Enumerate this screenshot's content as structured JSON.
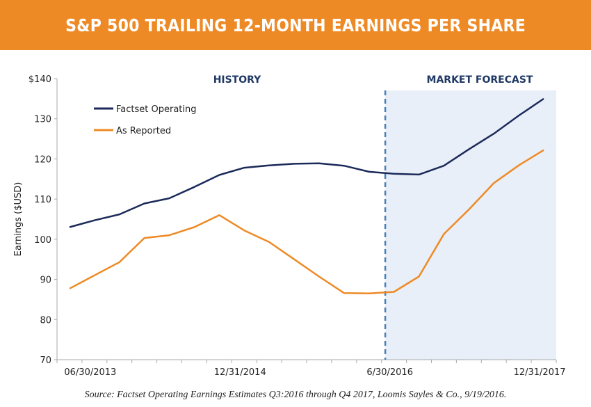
{
  "header": {
    "title": "S&P 500 TRAILING 12-MONTH EARNINGS PER SHARE"
  },
  "colors": {
    "header_bg": "#ee8a25",
    "factset": "#1c2a5a",
    "reported": "#ee8a25",
    "forecast_bg": "#e8eff8",
    "divider": "#4a80b8"
  },
  "chart_data": {
    "type": "line",
    "title": "S&P 500 TRAILING 12-MONTH EARNINGS PER SHARE",
    "ylabel": "Earnings ($USD)",
    "xlabel": "",
    "ylim": [
      70,
      140
    ],
    "yticks": [
      70,
      80,
      90,
      100,
      110,
      120,
      130,
      140
    ],
    "ytick_labels": [
      "70",
      "80",
      "90",
      "100",
      "110",
      "120",
      "130",
      "$140"
    ],
    "x": [
      "3/31/2013",
      "06/30/2013",
      "9/30/2013",
      "12/31/2013",
      "3/31/2014",
      "6/30/2014",
      "9/30/2014",
      "12/31/2014",
      "3/31/2015",
      "6/30/2015",
      "9/30/2015",
      "12/31/2015",
      "3/31/2016",
      "6/30/2016",
      "9/30/2016",
      "12/31/2016",
      "3/31/2017",
      "6/30/2017",
      "9/30/2017",
      "12/31/2017"
    ],
    "xtick_labels": [
      {
        "index": 1,
        "label": "06/30/2013"
      },
      {
        "index": 7,
        "label": "12/31/2014"
      },
      {
        "index": 13,
        "label": "6/30/2016"
      },
      {
        "index": 19,
        "label": "12/31/2017"
      }
    ],
    "series": [
      {
        "name": "Factset Operating",
        "color": "#1c2a5a",
        "values": [
          103.0,
          104.7,
          106.2,
          108.9,
          110.2,
          113.0,
          116.0,
          117.8,
          118.4,
          118.8,
          118.9,
          118.3,
          116.8,
          116.3,
          116.1,
          118.3,
          122.4,
          126.3,
          130.8,
          135.0
        ]
      },
      {
        "name": "As Reported",
        "color": "#ee8a25",
        "values": [
          87.7,
          91.0,
          94.3,
          100.3,
          101.0,
          103.0,
          106.0,
          102.2,
          99.3,
          95.0,
          90.7,
          86.6,
          86.5,
          86.9,
          90.7,
          101.3,
          107.4,
          114.0,
          118.4,
          122.2
        ]
      }
    ],
    "regions": [
      {
        "label": "HISTORY"
      },
      {
        "label": "MARKET FORECAST",
        "shaded": true
      }
    ],
    "legend_placement": "top-left",
    "grid": false
  },
  "source": "Source: Factset Operating Earnings Estimates Q3:2016 through Q4 2017, Loomis Sayles & Co., 9/19/2016."
}
